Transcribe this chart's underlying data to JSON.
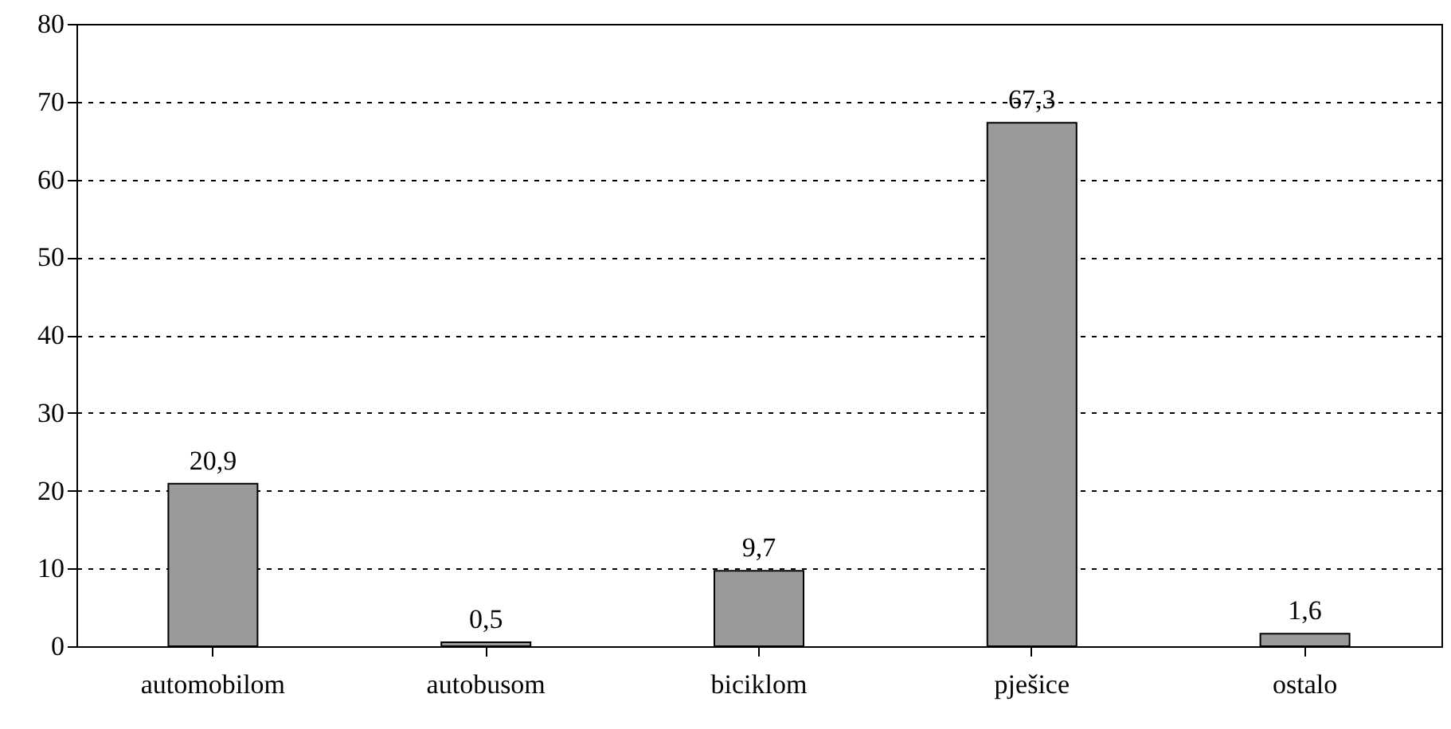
{
  "chart_data": {
    "type": "bar",
    "categories": [
      "automobilom",
      "autobusom",
      "biciklom",
      "pješice",
      "ostalo"
    ],
    "values": [
      20.9,
      0.5,
      9.7,
      67.3,
      1.6
    ],
    "value_labels": [
      "20,9",
      "0,5",
      "9,7",
      "67,3",
      "1,6"
    ],
    "color": "#9a9a9a",
    "ylim": [
      0,
      80
    ],
    "yticks": [
      0,
      10,
      20,
      30,
      40,
      50,
      60,
      70,
      80
    ],
    "grid": "y"
  }
}
